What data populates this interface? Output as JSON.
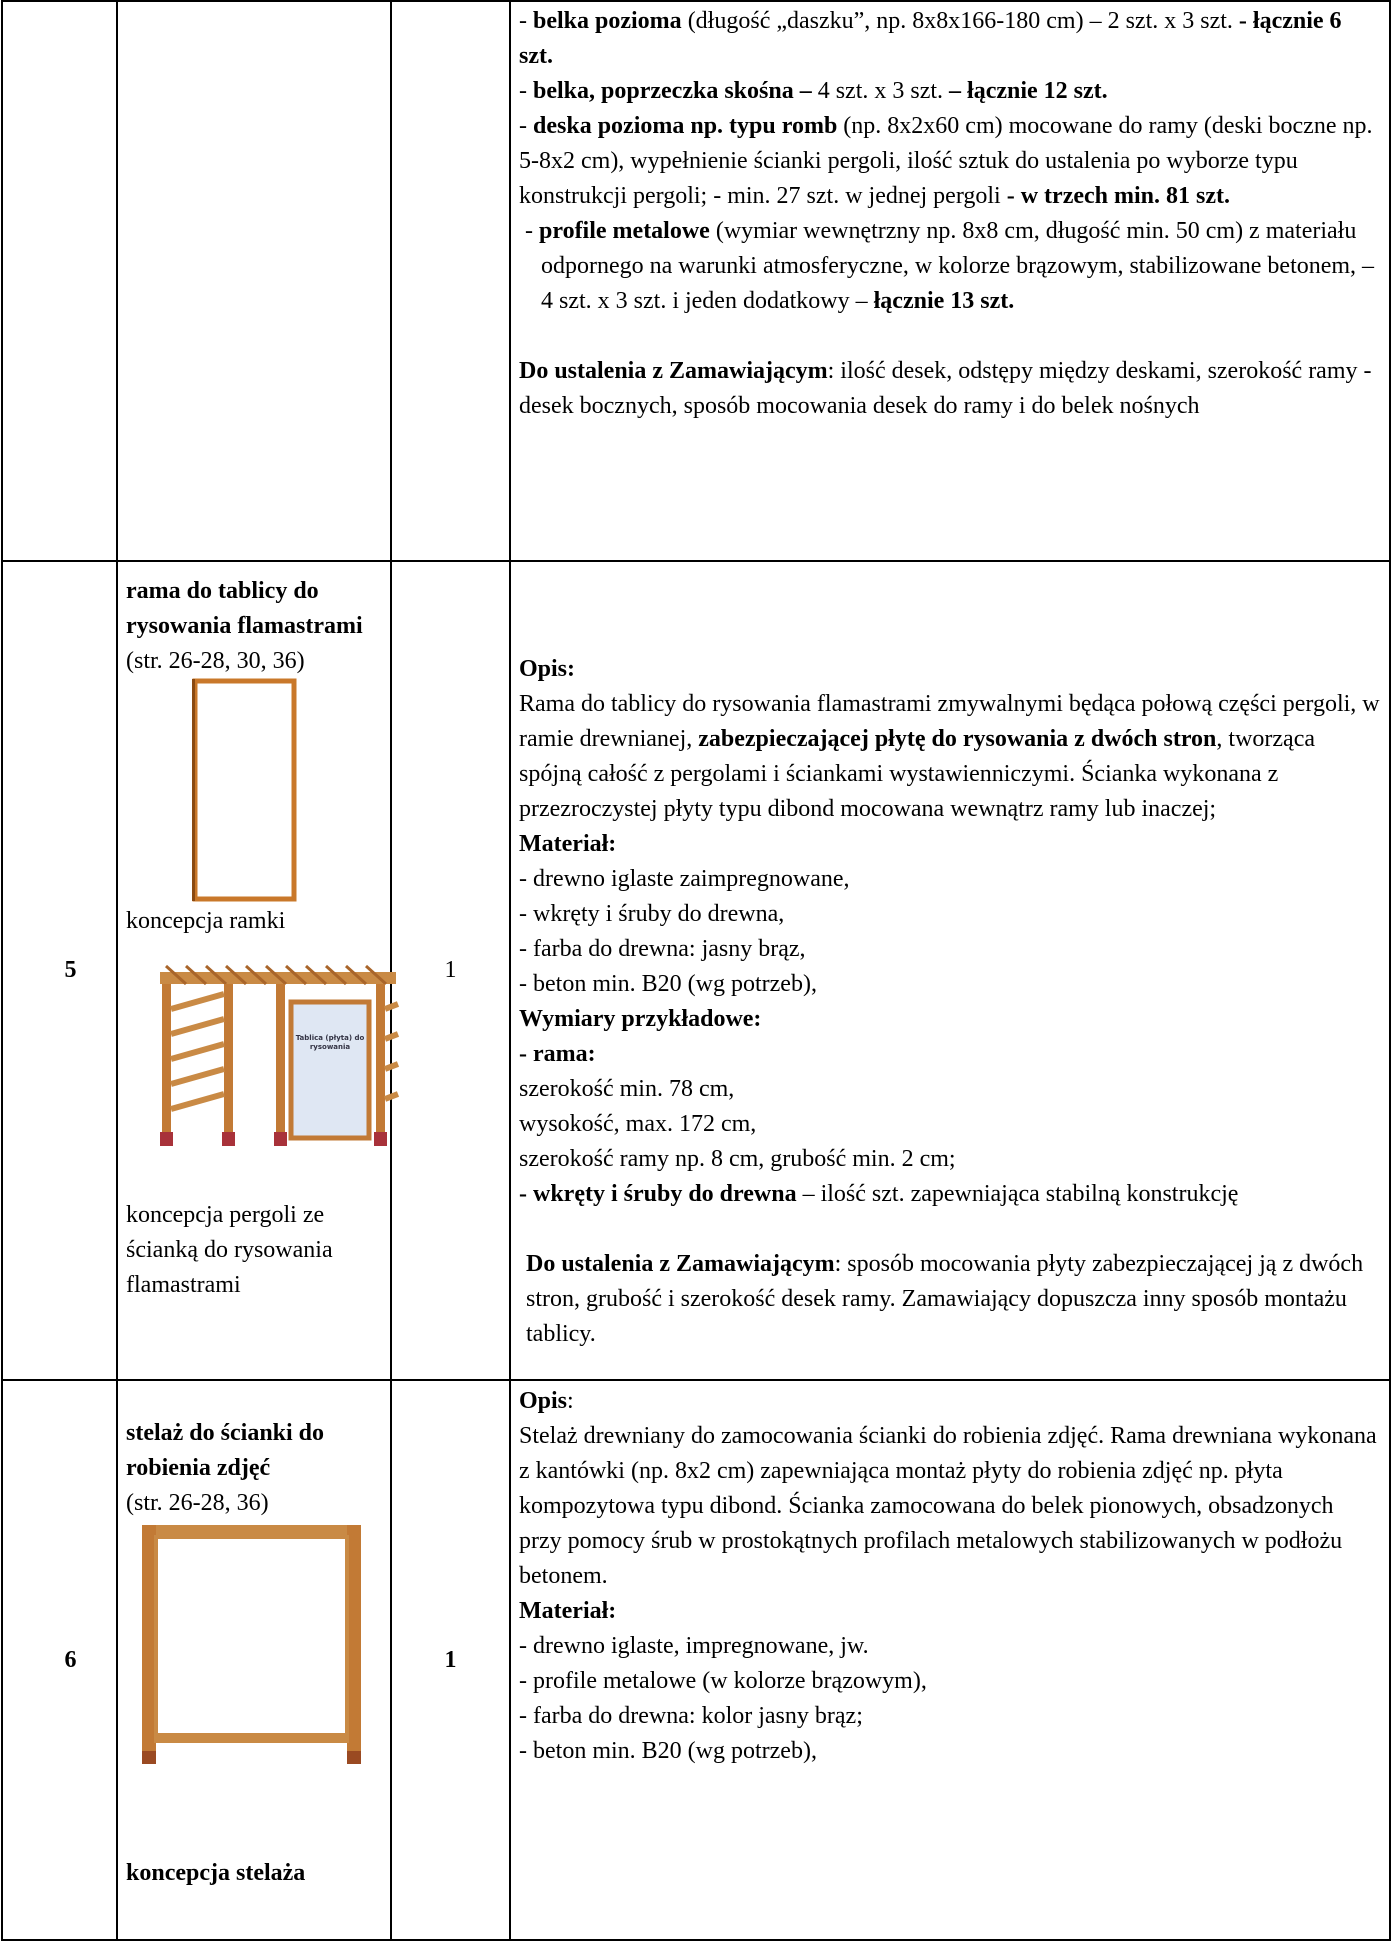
{
  "table": {
    "rows": [
      {
        "description": [
          [
            "- ",
            "belka pozioma",
            " (długość „daszku”, np. 8x8x166-180 cm) – 2 szt. x 3 szt. ",
            "- łącznie 6 szt."
          ],
          [
            "- ",
            "belka, poprzeczka skośna –",
            " 4 szt. x 3 szt. ",
            "– łącznie 12 szt."
          ],
          [
            "- ",
            "deska pozioma np. typu romb",
            " (np. 8x2x60 cm) mocowane do ramy (deski boczne np. 5-8x2 cm), wypełnienie ścianki pergoli, ilość sztuk do ustalenia po wyborze typu konstrukcji pergoli; - min. 27 szt. w jednej pergoli ",
            "- w trzech min. 81 szt."
          ],
          [
            "- ",
            "profile metalowe",
            " (wymiar wewnętrzny np. 8x8 cm, długość min. 50 cm) z materiału odpornego na warunki atmosferyczne,  w kolorze brązowym, stabilizowane betonem, – 4 szt. x 3 szt. i jeden dodatkowy – ",
            "łącznie 13 szt."
          ],
          [
            "Do ustalenia z Zamawiającym",
            ": ilość desek, odstępy między deskami, szerokość ramy - desek bocznych, sposób mocowania desek do ramy i do belek nośnych"
          ]
        ]
      },
      {
        "number": "5",
        "item": {
          "name": "rama do tablicy do rysowania flamastrami",
          "pages": "(str. 26-28, 30, 36)",
          "figures": [
            {
              "caption": "koncepcja ramki"
            },
            {
              "label": "Tablica (płyta) do rysowania",
              "caption": "koncepcja pergoli ze ścianką do rysowania flamastrami"
            }
          ]
        },
        "quantity": "1",
        "description": [
          [
            "Opis:"
          ],
          [
            "Rama do tablicy do rysowania flamastrami zmywalnymi będąca połową części pergoli, w ramie drewnianej, ",
            "zabezpieczającej płytę do rysowania z dwóch stron",
            ", tworząca spójną całość z pergolami i ściankami wystawienniczymi. Ścianka wykonana z przezroczystej płyty typu dibond mocowana wewnątrz ramy lub inaczej;"
          ],
          [
            "Materiał:"
          ],
          [
            "- drewno iglaste zaimpregnowane,"
          ],
          [
            "- wkręty i śruby do drewna,"
          ],
          [
            "- farba do drewna: jasny brąz,"
          ],
          [
            "- beton min. B20 (wg potrzeb),"
          ],
          [
            "Wymiary przykładowe:"
          ],
          [
            "- rama:"
          ],
          [
            "szerokość min. 78 cm,"
          ],
          [
            "wysokość,  max. 172 cm,"
          ],
          [
            "szerokość ramy np. 8 cm, grubość min. 2 cm;"
          ],
          [
            "- wkręty i śruby do drewna",
            " – ilość szt. zapewniająca stabilną konstrukcję"
          ],
          [
            "Do ustalenia z Zamawiającym",
            ":  sposób mocowania płyty zabezpieczającej ją z dwóch stron, grubość i szerokość desek ramy. Zamawiający dopuszcza inny sposób montażu tablicy."
          ]
        ]
      },
      {
        "number": "6",
        "item": {
          "name": "stelaż do ścianki do robienia zdjęć",
          "pages": "(str. 26-28, 36)",
          "figures": [
            {
              "caption": "koncepcja stelaża"
            }
          ]
        },
        "quantity": "1",
        "description": [
          [
            "Opis",
            ":"
          ],
          [
            "Stelaż drewniany do zamocowania ścianki do robienia zdjęć. Rama drewniana wykonana z kantówki (np. 8x2 cm) zapewniająca montaż płyty  do robienia zdjęć np. płyta kompozytowa typu dibond. Ścianka zamocowana do belek pionowych, obsadzonych przy pomocy śrub w prostokątnych profilach metalowych stabilizowanych w podłożu betonem."
          ],
          [
            "Materiał:"
          ],
          [
            "- drewno iglaste, impregnowane, jw."
          ],
          [
            "- profile metalowe (w kolorze brązowym),"
          ],
          [
            "- farba do drewna: kolor jasny brąz;"
          ],
          [
            "- beton min. B20 (wg potrzeb),"
          ]
        ]
      }
    ]
  }
}
